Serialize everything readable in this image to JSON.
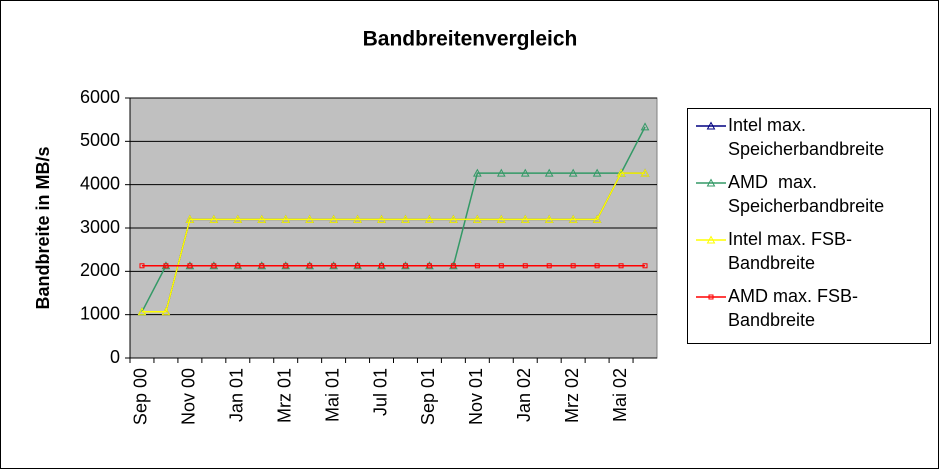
{
  "chart_data": {
    "type": "line",
    "title": "Bandbreitenvergleich",
    "y_label": "Bandbreite in MB/s",
    "categories": [
      "Sep 00",
      null,
      "Nov 00",
      null,
      "Jan 01",
      null,
      "Mrz 01",
      null,
      "Mai 01",
      null,
      "Jul 01",
      null,
      "Sep 01",
      null,
      "Nov 01",
      null,
      "Jan 02",
      null,
      "Mrz 02",
      null,
      "Mai 02",
      null
    ],
    "series": [
      {
        "name": "Intel max. Speicherbandbreite",
        "color": "#000080",
        "marker": "triangle",
        "values": [
          1066,
          1066,
          3200,
          3200,
          3200,
          3200,
          3200,
          3200,
          3200,
          3200,
          3200,
          3200,
          3200,
          3200,
          3200,
          3200,
          3200,
          3200,
          3200,
          3200,
          4266,
          4266
        ]
      },
      {
        "name": "AMD  max. Speicherbandbreite",
        "color": "#339966",
        "marker": "triangle",
        "values": [
          1066,
          2128,
          2128,
          2128,
          2128,
          2128,
          2128,
          2128,
          2128,
          2128,
          2128,
          2128,
          2128,
          2128,
          4266,
          4266,
          4266,
          4266,
          4266,
          4266,
          4266,
          5333
        ]
      },
      {
        "name": "Intel max. FSB-Bandbreite",
        "color": "#ffff00",
        "marker": "triangle",
        "values": [
          1066,
          1066,
          3200,
          3200,
          3200,
          3200,
          3200,
          3200,
          3200,
          3200,
          3200,
          3200,
          3200,
          3200,
          3200,
          3200,
          3200,
          3200,
          3200,
          3200,
          4266,
          4266
        ]
      },
      {
        "name": "AMD max. FSB-Bandbreite",
        "color": "#ff0000",
        "marker": "square",
        "values": [
          2128,
          2128,
          2128,
          2128,
          2128,
          2128,
          2128,
          2128,
          2128,
          2128,
          2128,
          2128,
          2128,
          2128,
          2128,
          2128,
          2128,
          2128,
          2128,
          2128,
          2128,
          2128
        ]
      }
    ],
    "ylim": [
      0,
      6000
    ],
    "yticks": [
      0,
      1000,
      2000,
      3000,
      4000,
      5000,
      6000
    ],
    "grid": true
  }
}
